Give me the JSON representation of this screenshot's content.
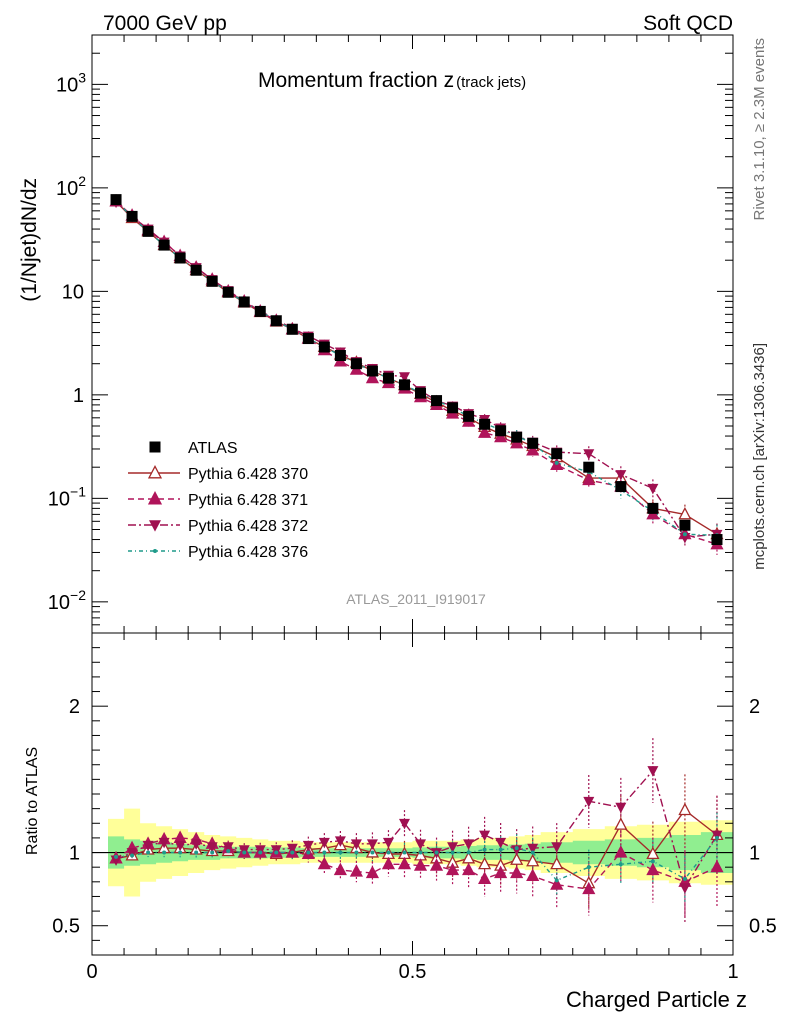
{
  "header": {
    "energy_label": "7000 GeV pp",
    "process_label": "Soft QCD",
    "right_top_label": "Rivet 3.1.10, ≥ 2.3M events",
    "right_bottom_label": "mcplots.cern.ch [arXiv:1306.3436]"
  },
  "chart_data": [
    {
      "type": "scatter",
      "title": "Momentum fraction z",
      "title_suffix": "(track jets)",
      "ylabel": "(1/Njet)dN/dz",
      "analysis_label": "ATLAS_2011_I919017",
      "y_scale": "log",
      "xlim": [
        0,
        1
      ],
      "ylim": [
        0.005,
        3000
      ],
      "yticks": [
        {
          "v": 0.01,
          "base": "10",
          "exp": "−2"
        },
        {
          "v": 0.1,
          "base": "10",
          "exp": "−1"
        },
        {
          "v": 1,
          "base": "1",
          "exp": ""
        },
        {
          "v": 10,
          "base": "10",
          "exp": ""
        },
        {
          "v": 100,
          "base": "10",
          "exp": "2"
        },
        {
          "v": 1000,
          "base": "10",
          "exp": "3"
        }
      ],
      "legend_position": "left-middle",
      "x": [
        0.0375,
        0.0625,
        0.0875,
        0.1125,
        0.1375,
        0.1625,
        0.1875,
        0.2125,
        0.2375,
        0.2625,
        0.2875,
        0.3125,
        0.3375,
        0.3625,
        0.3875,
        0.4125,
        0.4375,
        0.4625,
        0.4875,
        0.5125,
        0.5375,
        0.5625,
        0.5875,
        0.6125,
        0.6375,
        0.6625,
        0.6875,
        0.725,
        0.775,
        0.825,
        0.875,
        0.925,
        0.975
      ],
      "series": [
        {
          "name": "ATLAS",
          "color": "#000000",
          "marker": "square",
          "dash": "none",
          "values": [
            77,
            53,
            38,
            28,
            21,
            16,
            12.5,
            9.8,
            7.9,
            6.4,
            5.2,
            4.3,
            3.5,
            2.9,
            2.4,
            2.0,
            1.7,
            1.45,
            1.25,
            1.04,
            0.88,
            0.75,
            0.62,
            0.52,
            0.45,
            0.39,
            0.34,
            0.27,
            0.2,
            0.13,
            0.08,
            0.055,
            0.04
          ]
        },
        {
          "name": "Pythia 6.428 370",
          "color": "#a52a2a",
          "marker": "triangle-up-open",
          "dash": "none",
          "values": [
            74,
            51,
            38,
            28,
            21,
            16,
            12.5,
            9.8,
            7.8,
            6.3,
            5.1,
            4.3,
            3.5,
            2.9,
            2.45,
            2.05,
            1.7,
            1.45,
            1.24,
            1.02,
            0.85,
            0.7,
            0.6,
            0.49,
            0.42,
            0.37,
            0.32,
            0.25,
            0.157,
            0.157,
            0.08,
            0.07,
            0.045
          ]
        },
        {
          "name": "Pythia 6.428 371",
          "color": "#b0145a",
          "marker": "triangle-up",
          "dash": "dashed",
          "values": [
            74,
            54,
            39,
            30,
            22,
            17,
            13,
            10,
            8.0,
            6.4,
            5.2,
            4.3,
            3.5,
            2.7,
            2.1,
            1.75,
            1.45,
            1.3,
            1.15,
            0.95,
            0.8,
            0.66,
            0.55,
            0.43,
            0.39,
            0.34,
            0.29,
            0.21,
            0.15,
            0.13,
            0.07,
            0.045,
            0.036
          ]
        },
        {
          "name": "Pythia 6.428 372",
          "color": "#a01050",
          "marker": "triangle-down",
          "dash": "dashdot",
          "values": [
            73,
            53,
            40,
            30,
            22,
            17,
            13,
            10.2,
            8.0,
            6.5,
            5.3,
            4.4,
            3.7,
            3.1,
            2.6,
            2.1,
            1.8,
            1.55,
            1.5,
            1.1,
            0.88,
            0.78,
            0.66,
            0.58,
            0.48,
            0.4,
            0.35,
            0.28,
            0.27,
            0.17,
            0.125,
            0.042,
            0.045
          ]
        },
        {
          "name": "Pythia 6.428 376",
          "color": "#1f9a8a",
          "marker": "dot",
          "dash": "dashdotted",
          "values": [
            75,
            52,
            38,
            28,
            21,
            16,
            12.5,
            9.9,
            7.9,
            6.4,
            5.2,
            4.3,
            3.5,
            2.9,
            2.4,
            2.0,
            1.7,
            1.45,
            1.25,
            1.04,
            0.88,
            0.75,
            0.62,
            0.53,
            0.46,
            0.4,
            0.34,
            0.22,
            0.18,
            0.12,
            0.075,
            0.045,
            0.044
          ]
        }
      ]
    },
    {
      "type": "scatter",
      "ylabel": "Ratio to ATLAS",
      "xlabel": "Charged Particle z",
      "xlim": [
        0,
        1
      ],
      "ylim": [
        0.3,
        2.5
      ],
      "xticks": [
        {
          "v": 0,
          "label": "0"
        },
        {
          "v": 0.5,
          "label": "0.5"
        },
        {
          "v": 1,
          "label": "1"
        }
      ],
      "yticks": [
        {
          "v": 0.5,
          "label": "0.5"
        },
        {
          "v": 1,
          "label": "1"
        },
        {
          "v": 2,
          "label": "2"
        }
      ],
      "stat_band_color": "#90ee90",
      "total_band_color": "#ffff99",
      "x_edges": [
        0.025,
        0.05,
        0.075,
        0.1,
        0.125,
        0.15,
        0.175,
        0.2,
        0.225,
        0.25,
        0.275,
        0.3,
        0.325,
        0.35,
        0.375,
        0.4,
        0.425,
        0.45,
        0.475,
        0.5,
        0.525,
        0.55,
        0.575,
        0.6,
        0.625,
        0.65,
        0.675,
        0.7,
        0.75,
        0.8,
        0.85,
        0.9,
        0.95,
        1.0
      ],
      "stat_band_halfwidth": [
        0.11,
        0.09,
        0.08,
        0.07,
        0.06,
        0.05,
        0.05,
        0.04,
        0.04,
        0.04,
        0.035,
        0.035,
        0.03,
        0.03,
        0.03,
        0.03,
        0.03,
        0.03,
        0.03,
        0.035,
        0.04,
        0.04,
        0.045,
        0.05,
        0.05,
        0.055,
        0.06,
        0.07,
        0.08,
        0.09,
        0.1,
        0.12,
        0.14
      ],
      "total_band_halfwidth": [
        0.23,
        0.3,
        0.2,
        0.18,
        0.16,
        0.14,
        0.12,
        0.11,
        0.1,
        0.09,
        0.08,
        0.08,
        0.07,
        0.07,
        0.07,
        0.07,
        0.07,
        0.07,
        0.07,
        0.08,
        0.08,
        0.08,
        0.09,
        0.1,
        0.1,
        0.11,
        0.12,
        0.14,
        0.16,
        0.18,
        0.19,
        0.21,
        0.22
      ],
      "series": [
        {
          "name": "Pythia 6.428 370",
          "values": [
            0.96,
            0.98,
            1.02,
            1.03,
            1.03,
            1.02,
            1.01,
            1.01,
            1.0,
            1.0,
            0.99,
            1.0,
            1.02,
            1.03,
            1.05,
            1.03,
            1.0,
            0.99,
            0.99,
            0.98,
            0.96,
            0.93,
            0.96,
            0.92,
            0.91,
            0.95,
            0.94,
            0.92,
            0.79,
            1.19,
            0.99,
            1.29,
            1.12
          ]
        },
        {
          "name": "Pythia 6.428 371",
          "values": [
            0.96,
            1.03,
            1.06,
            1.09,
            1.1,
            1.09,
            1.06,
            1.03,
            1.0,
            1.0,
            1.0,
            1.0,
            0.99,
            0.92,
            0.88,
            0.87,
            0.86,
            0.92,
            0.92,
            0.91,
            0.91,
            0.88,
            0.88,
            0.82,
            0.86,
            0.86,
            0.84,
            0.78,
            0.75,
            1.0,
            0.88,
            0.8,
            0.9
          ]
        },
        {
          "name": "Pythia 6.428 372",
          "values": [
            0.95,
            1.0,
            1.05,
            1.07,
            1.05,
            1.06,
            1.04,
            1.04,
            1.02,
            1.02,
            1.02,
            1.03,
            1.05,
            1.07,
            1.08,
            1.06,
            1.06,
            1.07,
            1.2,
            1.06,
            1.0,
            1.04,
            1.06,
            1.12,
            1.07,
            1.02,
            1.03,
            1.04,
            1.35,
            1.31,
            1.56,
            0.76,
            1.12
          ]
        },
        {
          "name": "Pythia 6.428 376",
          "values": [
            0.97,
            0.98,
            1.0,
            1.0,
            1.0,
            1.0,
            1.0,
            1.01,
            1.0,
            1.0,
            1.0,
            1.0,
            1.0,
            1.0,
            1.0,
            1.0,
            1.0,
            1.0,
            1.0,
            1.0,
            1.0,
            1.0,
            1.0,
            1.02,
            1.02,
            1.03,
            1.0,
            0.81,
            0.9,
            0.92,
            0.94,
            0.82,
            1.1
          ]
        }
      ]
    }
  ]
}
